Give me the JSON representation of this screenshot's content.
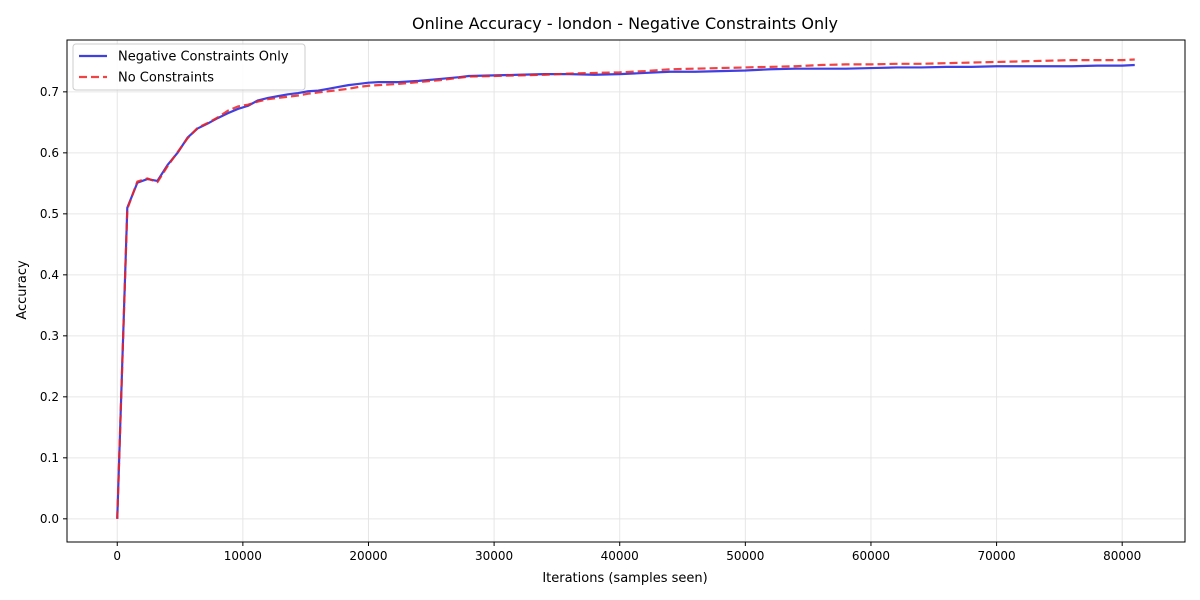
{
  "chart_data": {
    "type": "line",
    "title": "Online Accuracy - london - Negative Constraints Only",
    "xlabel": "Iterations (samples seen)",
    "ylabel": "Accuracy",
    "xlim": [
      -4000,
      85000
    ],
    "ylim": [
      -0.038,
      0.785
    ],
    "xticks": [
      0,
      10000,
      20000,
      30000,
      40000,
      50000,
      60000,
      70000,
      80000
    ],
    "yticks": [
      0.0,
      0.1,
      0.2,
      0.3,
      0.4,
      0.5,
      0.6,
      0.7
    ],
    "grid": true,
    "legend_position": "top-left",
    "series": [
      {
        "name": "Negative Constraints Only",
        "color": "#1f1fdd",
        "style": "solid",
        "x": [
          0,
          800,
          1600,
          2400,
          3200,
          4000,
          4800,
          5600,
          6400,
          7200,
          8000,
          8800,
          9600,
          10400,
          11200,
          12000,
          12800,
          13600,
          14400,
          15200,
          16000,
          16800,
          17600,
          18400,
          19200,
          20000,
          20800,
          22400,
          24000,
          25600,
          27200,
          28000,
          30000,
          32000,
          34000,
          36000,
          38000,
          40000,
          42000,
          44000,
          46000,
          48000,
          50000,
          52000,
          54000,
          56000,
          58000,
          60000,
          62000,
          64000,
          66000,
          68000,
          70000,
          72000,
          74000,
          76000,
          78000,
          80000,
          81000
        ],
        "y": [
          0.0,
          0.51,
          0.551,
          0.557,
          0.554,
          0.58,
          0.6,
          0.625,
          0.64,
          0.648,
          0.657,
          0.665,
          0.672,
          0.677,
          0.686,
          0.69,
          0.693,
          0.696,
          0.698,
          0.701,
          0.702,
          0.705,
          0.708,
          0.711,
          0.713,
          0.715,
          0.716,
          0.716,
          0.718,
          0.721,
          0.724,
          0.726,
          0.727,
          0.728,
          0.729,
          0.729,
          0.728,
          0.729,
          0.731,
          0.733,
          0.733,
          0.734,
          0.735,
          0.737,
          0.738,
          0.738,
          0.738,
          0.739,
          0.74,
          0.74,
          0.741,
          0.741,
          0.742,
          0.742,
          0.742,
          0.742,
          0.743,
          0.743,
          0.744
        ]
      },
      {
        "name": "No Constraints",
        "color": "#ee2222",
        "style": "dashed",
        "x": [
          0,
          800,
          1600,
          2400,
          3200,
          4000,
          4800,
          5600,
          6400,
          7200,
          8000,
          8800,
          9600,
          10400,
          11200,
          12000,
          12800,
          13600,
          14400,
          15200,
          16000,
          16800,
          17600,
          18400,
          19200,
          20000,
          20800,
          22400,
          24000,
          25600,
          27200,
          28000,
          30000,
          32000,
          34000,
          36000,
          38000,
          40000,
          42000,
          44000,
          46000,
          48000,
          50000,
          52000,
          54000,
          56000,
          58000,
          60000,
          62000,
          64000,
          66000,
          68000,
          70000,
          72000,
          74000,
          76000,
          78000,
          80000,
          81000
        ],
        "y": [
          0.0,
          0.508,
          0.553,
          0.558,
          0.552,
          0.578,
          0.601,
          0.624,
          0.641,
          0.649,
          0.658,
          0.669,
          0.676,
          0.679,
          0.684,
          0.688,
          0.69,
          0.692,
          0.694,
          0.697,
          0.699,
          0.701,
          0.703,
          0.705,
          0.708,
          0.71,
          0.711,
          0.713,
          0.716,
          0.719,
          0.723,
          0.725,
          0.726,
          0.727,
          0.728,
          0.73,
          0.731,
          0.732,
          0.734,
          0.737,
          0.738,
          0.739,
          0.74,
          0.741,
          0.742,
          0.744,
          0.745,
          0.745,
          0.746,
          0.746,
          0.747,
          0.748,
          0.749,
          0.75,
          0.751,
          0.752,
          0.752,
          0.752,
          0.753
        ]
      }
    ]
  }
}
